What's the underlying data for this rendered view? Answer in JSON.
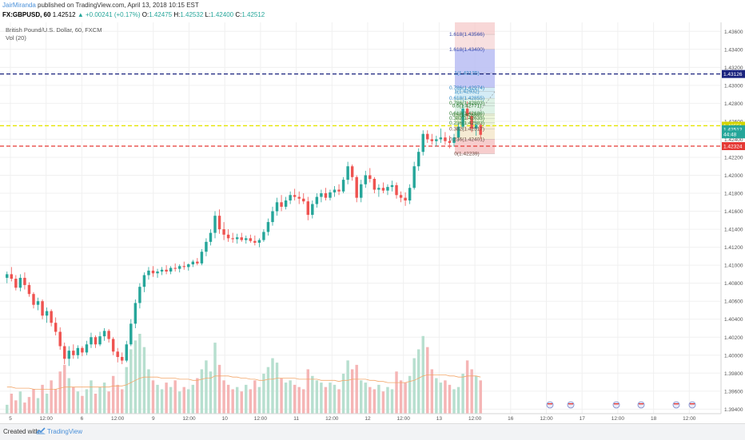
{
  "header": {
    "author": "JairMiranda",
    "published_text": " published on TradingView.com, April 13, 2018 10:15 EST",
    "symbol": "FX:GBPUSD, 60",
    "price": "1.42512",
    "change": "▲ +0.00241 (+0.17%)",
    "open_label": "O:",
    "open": "1.42475",
    "high_label": "H:",
    "high": "1.42532",
    "low_label": "L:",
    "low": "1.42400",
    "close_label": "C:",
    "close": "1.42512"
  },
  "legend": {
    "series_name": "British Pound/U.S. Dollar, 60, FXCM",
    "indicator": "Vol (20)"
  },
  "footer": {
    "created_with": "Created with",
    "brand": "TradingView"
  },
  "colors": {
    "up": "#26a69a",
    "down": "#ef5350",
    "vol_up": "#b7dfcf",
    "vol_down": "#f5b5b5",
    "vol_ma": "#f3a86c",
    "blue_line": "#1a237e",
    "red_line": "#e53935",
    "yellow_line": "#e6e600",
    "blue_tag": "#1a237e",
    "red_tag": "#e53935",
    "green_tag": "#26a69a",
    "yellow_tag": "#d4d400"
  },
  "chart_data": {
    "type": "candlestick",
    "title": "British Pound/U.S. Dollar, 60, FXCM",
    "ylim": [
      1.3935,
      1.437
    ],
    "y_ticks": [
      "1.43600",
      "1.43400",
      "1.43200",
      "1.43000",
      "1.42800",
      "1.42600",
      "1.42400",
      "1.42200",
      "1.42000",
      "1.41800",
      "1.41600",
      "1.41400",
      "1.41200",
      "1.41000",
      "1.40800",
      "1.40600",
      "1.40400",
      "1.40200",
      "1.40000",
      "1.39800",
      "1.39600",
      "1.39400"
    ],
    "x_ticks": [
      "5",
      "12:00",
      "6",
      "12:00",
      "9",
      "12:00",
      "10",
      "12:00",
      "11",
      "12:00",
      "12",
      "12:00",
      "13",
      "12:00",
      "16",
      "12:00",
      "17",
      "12:00",
      "18",
      "12:00"
    ],
    "price_tags": [
      {
        "label": "1.43126",
        "value": 1.43126,
        "color": "blue_tag"
      },
      {
        "label": "1.42551",
        "value": 1.42551,
        "color": "yellow_tag"
      },
      {
        "label": "1.42512",
        "value": 1.42512,
        "color": "green_tag"
      },
      {
        "label": "44:48",
        "value": 1.42455,
        "color": "green_tag"
      },
      {
        "label": "1.42324",
        "value": 1.42324,
        "color": "red_tag"
      }
    ],
    "horizontal_lines": [
      {
        "value": 1.43126,
        "color": "blue_line"
      },
      {
        "value": 1.42551,
        "color": "yellow_line"
      },
      {
        "value": 1.42324,
        "color": "red_line"
      }
    ],
    "fib_labels": [
      {
        "label": "1.618(1.43566)",
        "value": 1.43566
      },
      {
        "label": "1.618(1.43400)",
        "value": 1.434
      },
      {
        "label": "1(1.43135)",
        "value": 1.43135
      },
      {
        "label": "0.786(1.42974)",
        "value": 1.42974
      },
      {
        "label": "1(1.42932)",
        "value": 1.42932
      },
      {
        "label": "0.618(1.42855)",
        "value": 1.42855
      },
      {
        "label": "0.786(1.42803)",
        "value": 1.42803
      },
      {
        "label": "0.5(1.42771)",
        "value": 1.42771
      },
      {
        "label": "0.618(1.42686)",
        "value": 1.42686
      },
      {
        "label": "0.5(1.42669)",
        "value": 1.42669
      },
      {
        "label": "0.382(1.42633)",
        "value": 1.42633
      },
      {
        "label": "0.236(1.42583)",
        "value": 1.42583
      },
      {
        "label": "0.382(1.42517)",
        "value": 1.42517
      },
      {
        "label": "0.236(1.42401)",
        "value": 1.42401
      },
      {
        "label": "0(1.42239)",
        "value": 1.42239
      }
    ],
    "candles_ohlc": [
      [
        1.4086,
        1.4093,
        1.408,
        1.409
      ],
      [
        1.409,
        1.4098,
        1.4082,
        1.4085
      ],
      [
        1.4085,
        1.4089,
        1.4072,
        1.4075
      ],
      [
        1.4075,
        1.409,
        1.4071,
        1.4086
      ],
      [
        1.4086,
        1.4092,
        1.4073,
        1.4078
      ],
      [
        1.4078,
        1.4081,
        1.4065,
        1.4068
      ],
      [
        1.4068,
        1.407,
        1.4052,
        1.4056
      ],
      [
        1.4056,
        1.4064,
        1.405,
        1.406
      ],
      [
        1.406,
        1.4062,
        1.404,
        1.4044
      ],
      [
        1.4044,
        1.4053,
        1.4036,
        1.4049
      ],
      [
        1.4049,
        1.4051,
        1.4032,
        1.4036
      ],
      [
        1.4036,
        1.4042,
        1.4022,
        1.4026
      ],
      [
        1.4026,
        1.4031,
        1.4006,
        1.401
      ],
      [
        1.401,
        1.4014,
        1.399,
        1.3996
      ],
      [
        1.3996,
        1.401,
        1.3988,
        1.4005
      ],
      [
        1.4005,
        1.4012,
        1.3996,
        1.4
      ],
      [
        1.4,
        1.4011,
        1.3996,
        1.4008
      ],
      [
        1.4008,
        1.401,
        1.3999,
        1.4003
      ],
      [
        1.4003,
        1.4016,
        1.4,
        1.4012
      ],
      [
        1.4012,
        1.4025,
        1.4008,
        1.402
      ],
      [
        1.402,
        1.4022,
        1.4008,
        1.4012
      ],
      [
        1.4012,
        1.4026,
        1.401,
        1.4021
      ],
      [
        1.4021,
        1.403,
        1.4016,
        1.4027
      ],
      [
        1.4027,
        1.4029,
        1.4014,
        1.4018
      ],
      [
        1.4018,
        1.402,
        1.4,
        1.4004
      ],
      [
        1.4004,
        1.4008,
        1.3992,
        1.3998
      ],
      [
        1.3998,
        1.4003,
        1.399,
        1.3994
      ],
      [
        1.3994,
        1.4016,
        1.3992,
        1.4012
      ],
      [
        1.4012,
        1.404,
        1.401,
        1.4035
      ],
      [
        1.4035,
        1.4062,
        1.403,
        1.4058
      ],
      [
        1.4058,
        1.408,
        1.4052,
        1.4076
      ],
      [
        1.4076,
        1.4092,
        1.407,
        1.4089
      ],
      [
        1.4089,
        1.4098,
        1.4084,
        1.4094
      ],
      [
        1.4094,
        1.4099,
        1.4087,
        1.4091
      ],
      [
        1.4091,
        1.4096,
        1.4086,
        1.4093
      ],
      [
        1.4093,
        1.4098,
        1.4089,
        1.4095
      ],
      [
        1.4095,
        1.41,
        1.409,
        1.4093
      ],
      [
        1.4093,
        1.4099,
        1.409,
        1.4097
      ],
      [
        1.4097,
        1.4102,
        1.4093,
        1.4096
      ],
      [
        1.4096,
        1.4101,
        1.4092,
        1.4099
      ],
      [
        1.4099,
        1.4104,
        1.4095,
        1.4098
      ],
      [
        1.4098,
        1.4102,
        1.4094,
        1.4101
      ],
      [
        1.4101,
        1.4106,
        1.4098,
        1.4104
      ],
      [
        1.4104,
        1.4108,
        1.41,
        1.4102
      ],
      [
        1.4102,
        1.4118,
        1.41,
        1.4115
      ],
      [
        1.4115,
        1.413,
        1.411,
        1.4126
      ],
      [
        1.4126,
        1.414,
        1.4122,
        1.4136
      ],
      [
        1.4136,
        1.416,
        1.413,
        1.4155
      ],
      [
        1.4155,
        1.4162,
        1.4135,
        1.414
      ],
      [
        1.414,
        1.4148,
        1.4128,
        1.4134
      ],
      [
        1.4134,
        1.414,
        1.4126,
        1.413
      ],
      [
        1.413,
        1.4136,
        1.4125,
        1.4129
      ],
      [
        1.4129,
        1.4135,
        1.4124,
        1.4131
      ],
      [
        1.4131,
        1.4136,
        1.4126,
        1.4128
      ],
      [
        1.4128,
        1.4133,
        1.4124,
        1.413
      ],
      [
        1.413,
        1.4134,
        1.4125,
        1.4127
      ],
      [
        1.4127,
        1.4133,
        1.4122,
        1.4125
      ],
      [
        1.4125,
        1.413,
        1.412,
        1.4128
      ],
      [
        1.4128,
        1.414,
        1.4126,
        1.4137
      ],
      [
        1.4137,
        1.4152,
        1.4133,
        1.4148
      ],
      [
        1.4148,
        1.4165,
        1.4144,
        1.416
      ],
      [
        1.416,
        1.4175,
        1.4155,
        1.417
      ],
      [
        1.417,
        1.4178,
        1.416,
        1.4165
      ],
      [
        1.4165,
        1.4176,
        1.4162,
        1.4172
      ],
      [
        1.4172,
        1.4182,
        1.4168,
        1.4178
      ],
      [
        1.4178,
        1.4185,
        1.4172,
        1.4176
      ],
      [
        1.4176,
        1.4182,
        1.4168,
        1.4174
      ],
      [
        1.4174,
        1.418,
        1.4168,
        1.4171
      ],
      [
        1.4171,
        1.4176,
        1.415,
        1.4156
      ],
      [
        1.4156,
        1.4172,
        1.4152,
        1.4168
      ],
      [
        1.4168,
        1.418,
        1.4164,
        1.4176
      ],
      [
        1.4176,
        1.4184,
        1.417,
        1.418
      ],
      [
        1.418,
        1.4186,
        1.4172,
        1.4175
      ],
      [
        1.4175,
        1.4184,
        1.4172,
        1.4181
      ],
      [
        1.4181,
        1.4188,
        1.4176,
        1.4184
      ],
      [
        1.4184,
        1.419,
        1.4178,
        1.4182
      ],
      [
        1.4182,
        1.4198,
        1.418,
        1.4195
      ],
      [
        1.4195,
        1.4215,
        1.419,
        1.421
      ],
      [
        1.421,
        1.4212,
        1.4194,
        1.4198
      ],
      [
        1.4198,
        1.42,
        1.417,
        1.4175
      ],
      [
        1.4175,
        1.4195,
        1.417,
        1.419
      ],
      [
        1.419,
        1.4205,
        1.4186,
        1.42
      ],
      [
        1.42,
        1.4208,
        1.4192,
        1.4196
      ],
      [
        1.4196,
        1.4198,
        1.418,
        1.4184
      ],
      [
        1.4184,
        1.419,
        1.4176,
        1.4186
      ],
      [
        1.4186,
        1.4192,
        1.418,
        1.4183
      ],
      [
        1.4183,
        1.419,
        1.4178,
        1.4187
      ],
      [
        1.4187,
        1.4194,
        1.4182,
        1.4189
      ],
      [
        1.4189,
        1.4192,
        1.4174,
        1.4178
      ],
      [
        1.4178,
        1.4182,
        1.417,
        1.4175
      ],
      [
        1.4175,
        1.4181,
        1.4166,
        1.4172
      ],
      [
        1.4172,
        1.419,
        1.4168,
        1.4186
      ],
      [
        1.4186,
        1.4215,
        1.4184,
        1.421
      ],
      [
        1.421,
        1.423,
        1.4205,
        1.4226
      ],
      [
        1.4226,
        1.425,
        1.4222,
        1.4246
      ],
      [
        1.4246,
        1.425,
        1.4236,
        1.424
      ],
      [
        1.424,
        1.4246,
        1.4234,
        1.4238
      ],
      [
        1.4238,
        1.4244,
        1.4232,
        1.424
      ],
      [
        1.424,
        1.4252,
        1.4236,
        1.4242
      ],
      [
        1.4242,
        1.4248,
        1.4234,
        1.4238
      ],
      [
        1.4238,
        1.4244,
        1.423,
        1.4236
      ],
      [
        1.4236,
        1.4246,
        1.4232,
        1.4242
      ],
      [
        1.4242,
        1.4258,
        1.4238,
        1.4254
      ],
      [
        1.4254,
        1.4278,
        1.425,
        1.4274
      ],
      [
        1.4274,
        1.4282,
        1.4262,
        1.4266
      ],
      [
        1.4266,
        1.427,
        1.4248,
        1.4252
      ],
      [
        1.4252,
        1.426,
        1.4244,
        1.4256
      ],
      [
        1.4256,
        1.4258,
        1.424,
        1.4245
      ]
    ],
    "volume": [
      8,
      18,
      12,
      20,
      10,
      15,
      22,
      14,
      26,
      18,
      30,
      22,
      38,
      44,
      32,
      24,
      20,
      16,
      22,
      30,
      18,
      24,
      28,
      20,
      34,
      26,
      22,
      42,
      58,
      66,
      72,
      60,
      40,
      30,
      26,
      22,
      28,
      24,
      30,
      20,
      24,
      22,
      26,
      32,
      40,
      48,
      38,
      64,
      44,
      30,
      26,
      22,
      24,
      20,
      26,
      22,
      30,
      24,
      36,
      42,
      50,
      46,
      32,
      28,
      30,
      26,
      24,
      22,
      40,
      34,
      30,
      28,
      24,
      28,
      26,
      22,
      36,
      48,
      40,
      44,
      30,
      28,
      24,
      22,
      26,
      20,
      24,
      22,
      38,
      30,
      28,
      34,
      50,
      58,
      70,
      60,
      40,
      32,
      28,
      30,
      26,
      22,
      24,
      36,
      48,
      40,
      34,
      30
    ],
    "volume_ma": [
      24,
      24,
      23,
      23,
      23,
      23,
      22,
      22,
      22,
      22,
      22,
      22,
      23,
      24,
      24,
      24,
      24,
      24,
      24,
      24,
      24,
      24,
      24,
      24,
      25,
      25,
      25,
      26,
      28,
      30,
      32,
      33,
      33,
      33,
      33,
      32,
      32,
      32,
      32,
      31,
      31,
      31,
      30,
      30,
      31,
      32,
      32,
      34,
      34,
      34,
      34,
      33,
      33,
      32,
      32,
      31,
      31,
      30,
      30,
      31,
      31,
      32,
      32,
      32,
      32,
      32,
      31,
      31,
      31,
      31,
      31,
      30,
      30,
      30,
      30,
      29,
      30,
      30,
      31,
      31,
      31,
      31,
      30,
      30,
      29,
      29,
      28,
      28,
      28,
      28,
      28,
      29,
      30,
      32,
      34,
      35,
      35,
      35,
      35,
      35,
      34,
      34,
      33,
      33,
      34,
      34,
      34,
      33
    ]
  }
}
